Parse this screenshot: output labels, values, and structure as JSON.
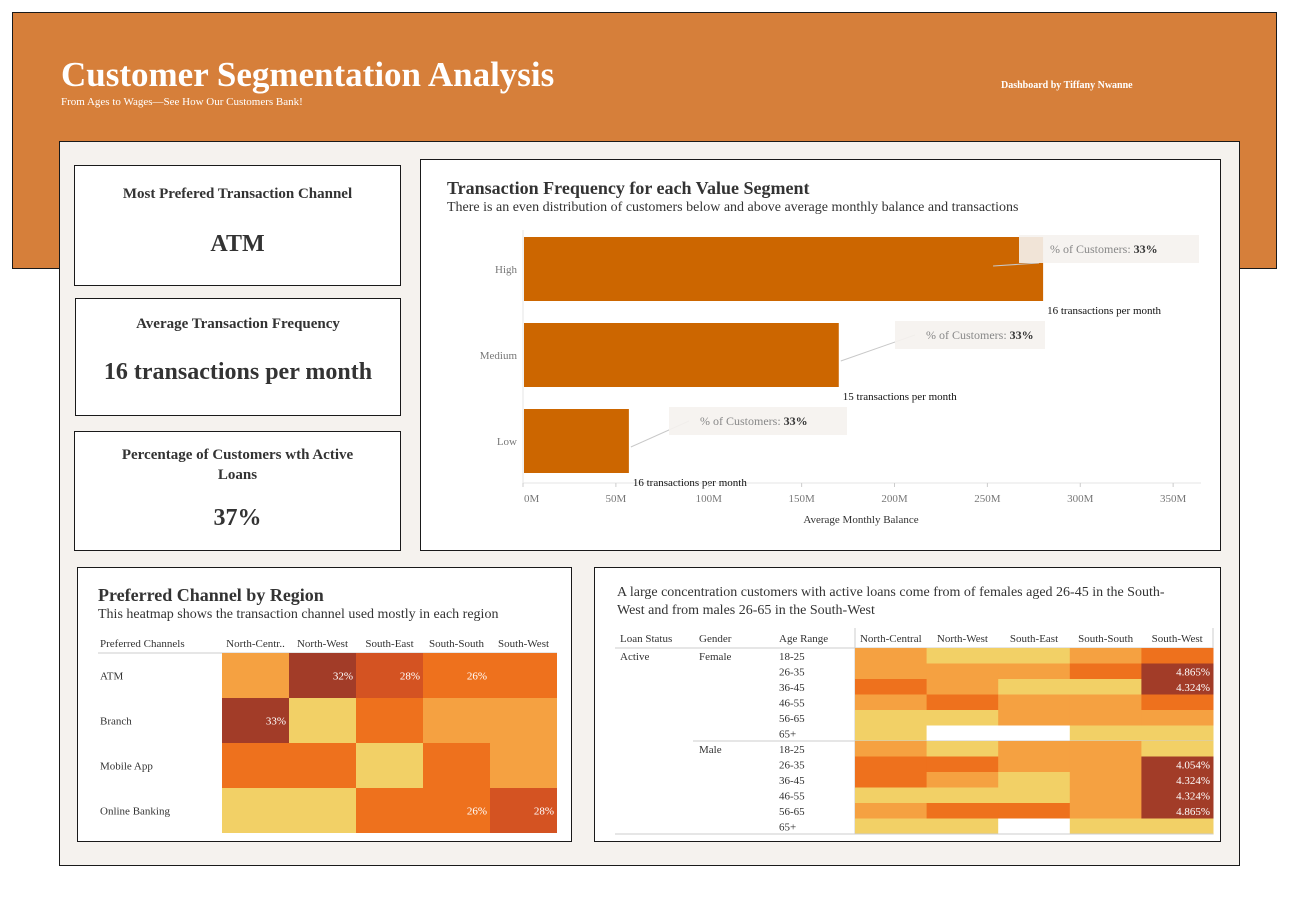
{
  "header": {
    "title": "Customer Segmentation Analysis",
    "subtitle": "From Ages to Wages—See How Our Customers Bank!",
    "credit": "Dashboard by Tiffany Nwanne"
  },
  "kpis": {
    "channel": {
      "title": "Most Prefered Transaction Channel",
      "value": "ATM"
    },
    "frequency": {
      "title": "Average Transaction Frequency",
      "value": "16 transactions per month"
    },
    "loans": {
      "title": "Percentage of Customers wth Active Loans",
      "value": "37%"
    }
  },
  "colors": {
    "banner": "#d67f3a",
    "bar": "#cc6600",
    "heat_low": "#f2d066",
    "heat_mid": "#f5a141",
    "heat_high": "#ee711d",
    "heat_higher": "#d45322",
    "heat_top": "#a23c28"
  },
  "bar_chart": {
    "title": "Transaction Frequency for each Value Segment",
    "subtitle": "There is an even distribution of customers below and above average monthly balance and transactions",
    "chart_data": {
      "type": "bar",
      "orientation": "horizontal",
      "categories": [
        "High",
        "Medium",
        "Low"
      ],
      "values": [
        280,
        170,
        57
      ],
      "value_unit": "M",
      "bar_labels": [
        "16 transactions per month",
        "15 transactions per month",
        "16 transactions per month"
      ],
      "annotation_prefix": "% of Customers: ",
      "annotation_values": [
        "33%",
        "33%",
        "33%"
      ],
      "xlabel": "Average Monthly Balance",
      "xticks": [
        "0M",
        "50M",
        "100M",
        "150M",
        "200M",
        "250M",
        "300M",
        "350M"
      ],
      "xtick_values": [
        0,
        50,
        100,
        150,
        200,
        250,
        300,
        350
      ],
      "xlim": [
        0,
        365
      ],
      "grid": false
    }
  },
  "region_heatmap": {
    "title": "Preferred Channel by Region",
    "subtitle": "This heatmap shows the transaction channel used mostly in each region",
    "chart_data": {
      "type": "heatmap",
      "row_header": "Preferred Channels",
      "columns": [
        "North-Centr..",
        "North-West",
        "South-East",
        "South-South",
        "South-West"
      ],
      "rows": [
        "ATM",
        "Branch",
        "Mobile App",
        "Online Banking"
      ],
      "levels": [
        [
          2,
          5,
          4,
          3,
          3
        ],
        [
          5,
          1,
          3,
          2,
          2
        ],
        [
          3,
          3,
          1,
          3,
          2
        ],
        [
          1,
          1,
          3,
          3,
          4
        ]
      ],
      "labels": [
        [
          "",
          "32%",
          "28%",
          "26%",
          ""
        ],
        [
          "33%",
          "",
          "",
          "",
          ""
        ],
        [
          "",
          "",
          "",
          "",
          ""
        ],
        [
          "",
          "",
          "",
          "26%",
          "28%"
        ]
      ]
    }
  },
  "loan_heatmap": {
    "description": "A large concentration customers with active loans come from of females aged 26-45 in the South-West and from males 26-65 in the South-West",
    "chart_data": {
      "type": "heatmap",
      "headers": [
        "Loan Status",
        "Gender",
        "Age Range"
      ],
      "columns": [
        "North-Central",
        "North-West",
        "South-East",
        "South-South",
        "South-West"
      ],
      "loan_status": "Active",
      "groups": [
        {
          "gender": "Female",
          "ages": [
            "18-25",
            "26-35",
            "36-45",
            "46-55",
            "56-65",
            "65+"
          ],
          "levels": [
            [
              2,
              1,
              1,
              2,
              3
            ],
            [
              2,
              2,
              2,
              3,
              5
            ],
            [
              3,
              2,
              1,
              1,
              5
            ],
            [
              2,
              3,
              2,
              2,
              3
            ],
            [
              1,
              1,
              2,
              2,
              2
            ],
            [
              1,
              0,
              0,
              1,
              1
            ]
          ],
          "labels": [
            [
              "",
              "",
              "",
              "",
              ""
            ],
            [
              "",
              "",
              "",
              "",
              "4.865%"
            ],
            [
              "",
              "",
              "",
              "",
              "4.324%"
            ],
            [
              "",
              "",
              "",
              "",
              ""
            ],
            [
              "",
              "",
              "",
              "",
              ""
            ],
            [
              "",
              "",
              "",
              "",
              ""
            ]
          ]
        },
        {
          "gender": "Male",
          "ages": [
            "18-25",
            "26-35",
            "36-45",
            "46-55",
            "56-65",
            "65+"
          ],
          "levels": [
            [
              2,
              1,
              2,
              2,
              1
            ],
            [
              3,
              3,
              2,
              2,
              5
            ],
            [
              3,
              2,
              1,
              2,
              5
            ],
            [
              1,
              1,
              1,
              2,
              5
            ],
            [
              2,
              3,
              3,
              2,
              5
            ],
            [
              1,
              1,
              0,
              1,
              1
            ]
          ],
          "labels": [
            [
              "",
              "",
              "",
              "",
              ""
            ],
            [
              "",
              "",
              "",
              "",
              "4.054%"
            ],
            [
              "",
              "",
              "",
              "",
              "4.324%"
            ],
            [
              "",
              "",
              "",
              "",
              "4.324%"
            ],
            [
              "",
              "",
              "",
              "",
              "4.865%"
            ],
            [
              "",
              "",
              "",
              "",
              ""
            ]
          ]
        }
      ]
    }
  }
}
